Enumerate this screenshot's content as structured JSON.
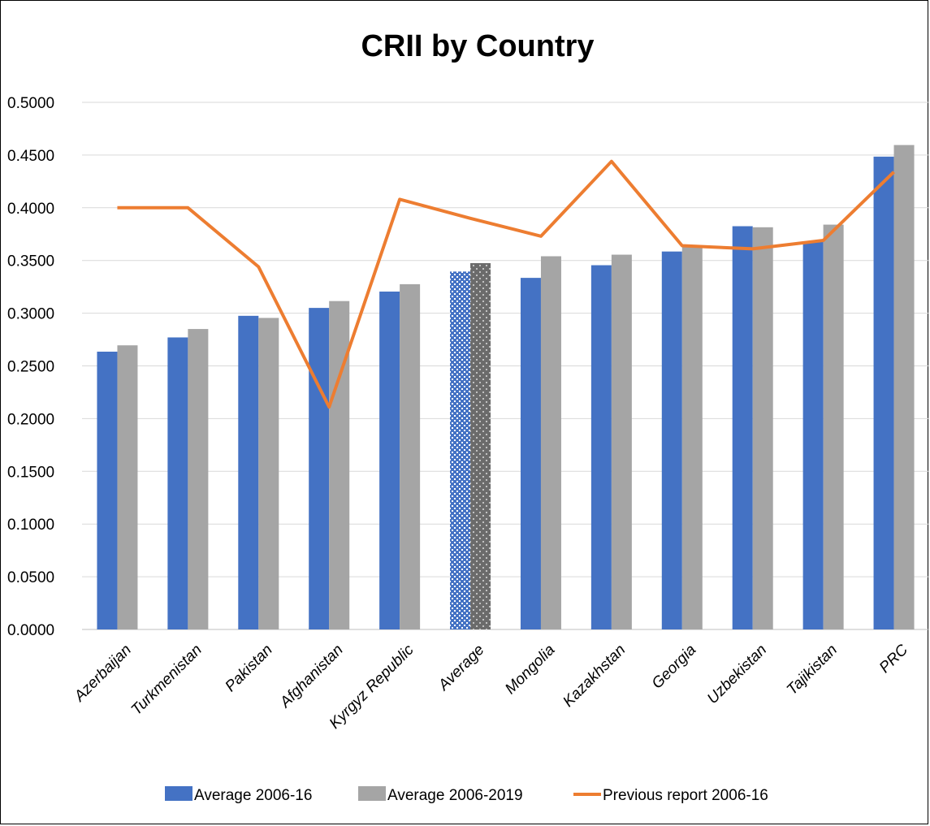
{
  "chart_data": {
    "type": "bar",
    "title": "CRII by Country",
    "categories": [
      "Azerbaijan",
      "Turkmenistan",
      "Pakistan",
      "Afghanistan",
      "Kyrgyz Republic",
      "Average",
      "Mongolia",
      "Kazakhstan",
      "Georgia",
      "Uzbekistan",
      "Tajikistan",
      "PRC"
    ],
    "y_ticks": [
      "0.0000",
      "0.0500",
      "0.1000",
      "0.1500",
      "0.2000",
      "0.2500",
      "0.3000",
      "0.3500",
      "0.4000",
      "0.4500",
      "0.5000"
    ],
    "ylim": [
      0,
      0.5
    ],
    "grid": true,
    "legend_position": "bottom",
    "highlighted_category": "Average",
    "series": [
      {
        "name": "Average 2006-16",
        "kind": "bar",
        "color": "#4472C4",
        "values": [
          0.2635,
          0.277,
          0.2975,
          0.305,
          0.3205,
          0.3395,
          0.3335,
          0.3455,
          0.3585,
          0.3825,
          0.368,
          0.4485
        ]
      },
      {
        "name": "Average 2006-2019",
        "kind": "bar",
        "color": "#A5A5A5",
        "values": [
          0.2695,
          0.285,
          0.2955,
          0.3115,
          0.3275,
          0.3475,
          0.354,
          0.3555,
          0.3645,
          0.3815,
          0.384,
          0.4595
        ]
      },
      {
        "name": "Previous report 2006-16",
        "kind": "line",
        "color": "#ED7D31",
        "values": [
          0.4,
          0.4,
          0.344,
          0.211,
          0.408,
          0.39,
          0.373,
          0.444,
          0.364,
          0.361,
          0.369,
          0.434
        ]
      }
    ]
  }
}
